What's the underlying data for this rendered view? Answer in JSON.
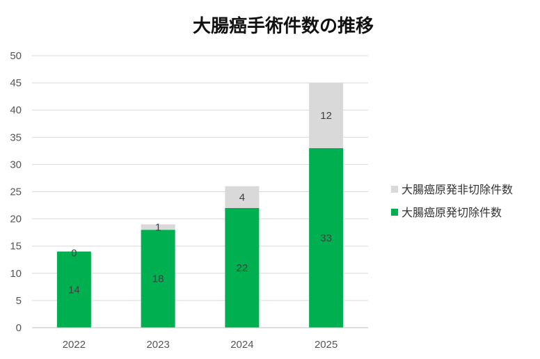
{
  "chart_data": {
    "type": "bar",
    "stacked": true,
    "title": "大腸癌手術件数の推移",
    "categories": [
      "2022",
      "2023",
      "2024",
      "2025"
    ],
    "series": [
      {
        "name": "大腸癌原発切除件数",
        "values": [
          14,
          18,
          22,
          33
        ],
        "color": "#00b050"
      },
      {
        "name": "大腸癌原発非切除件数",
        "values": [
          0,
          1,
          4,
          12
        ],
        "color": "#d9d9d9"
      }
    ],
    "ylim": [
      0,
      50
    ],
    "yticks": [
      0,
      5,
      10,
      15,
      20,
      25,
      30,
      35,
      40,
      45,
      50
    ],
    "grid": true,
    "legend_position": "right",
    "legend_order": [
      "大腸癌原発非切除件数",
      "大腸癌原発切除件数"
    ]
  }
}
